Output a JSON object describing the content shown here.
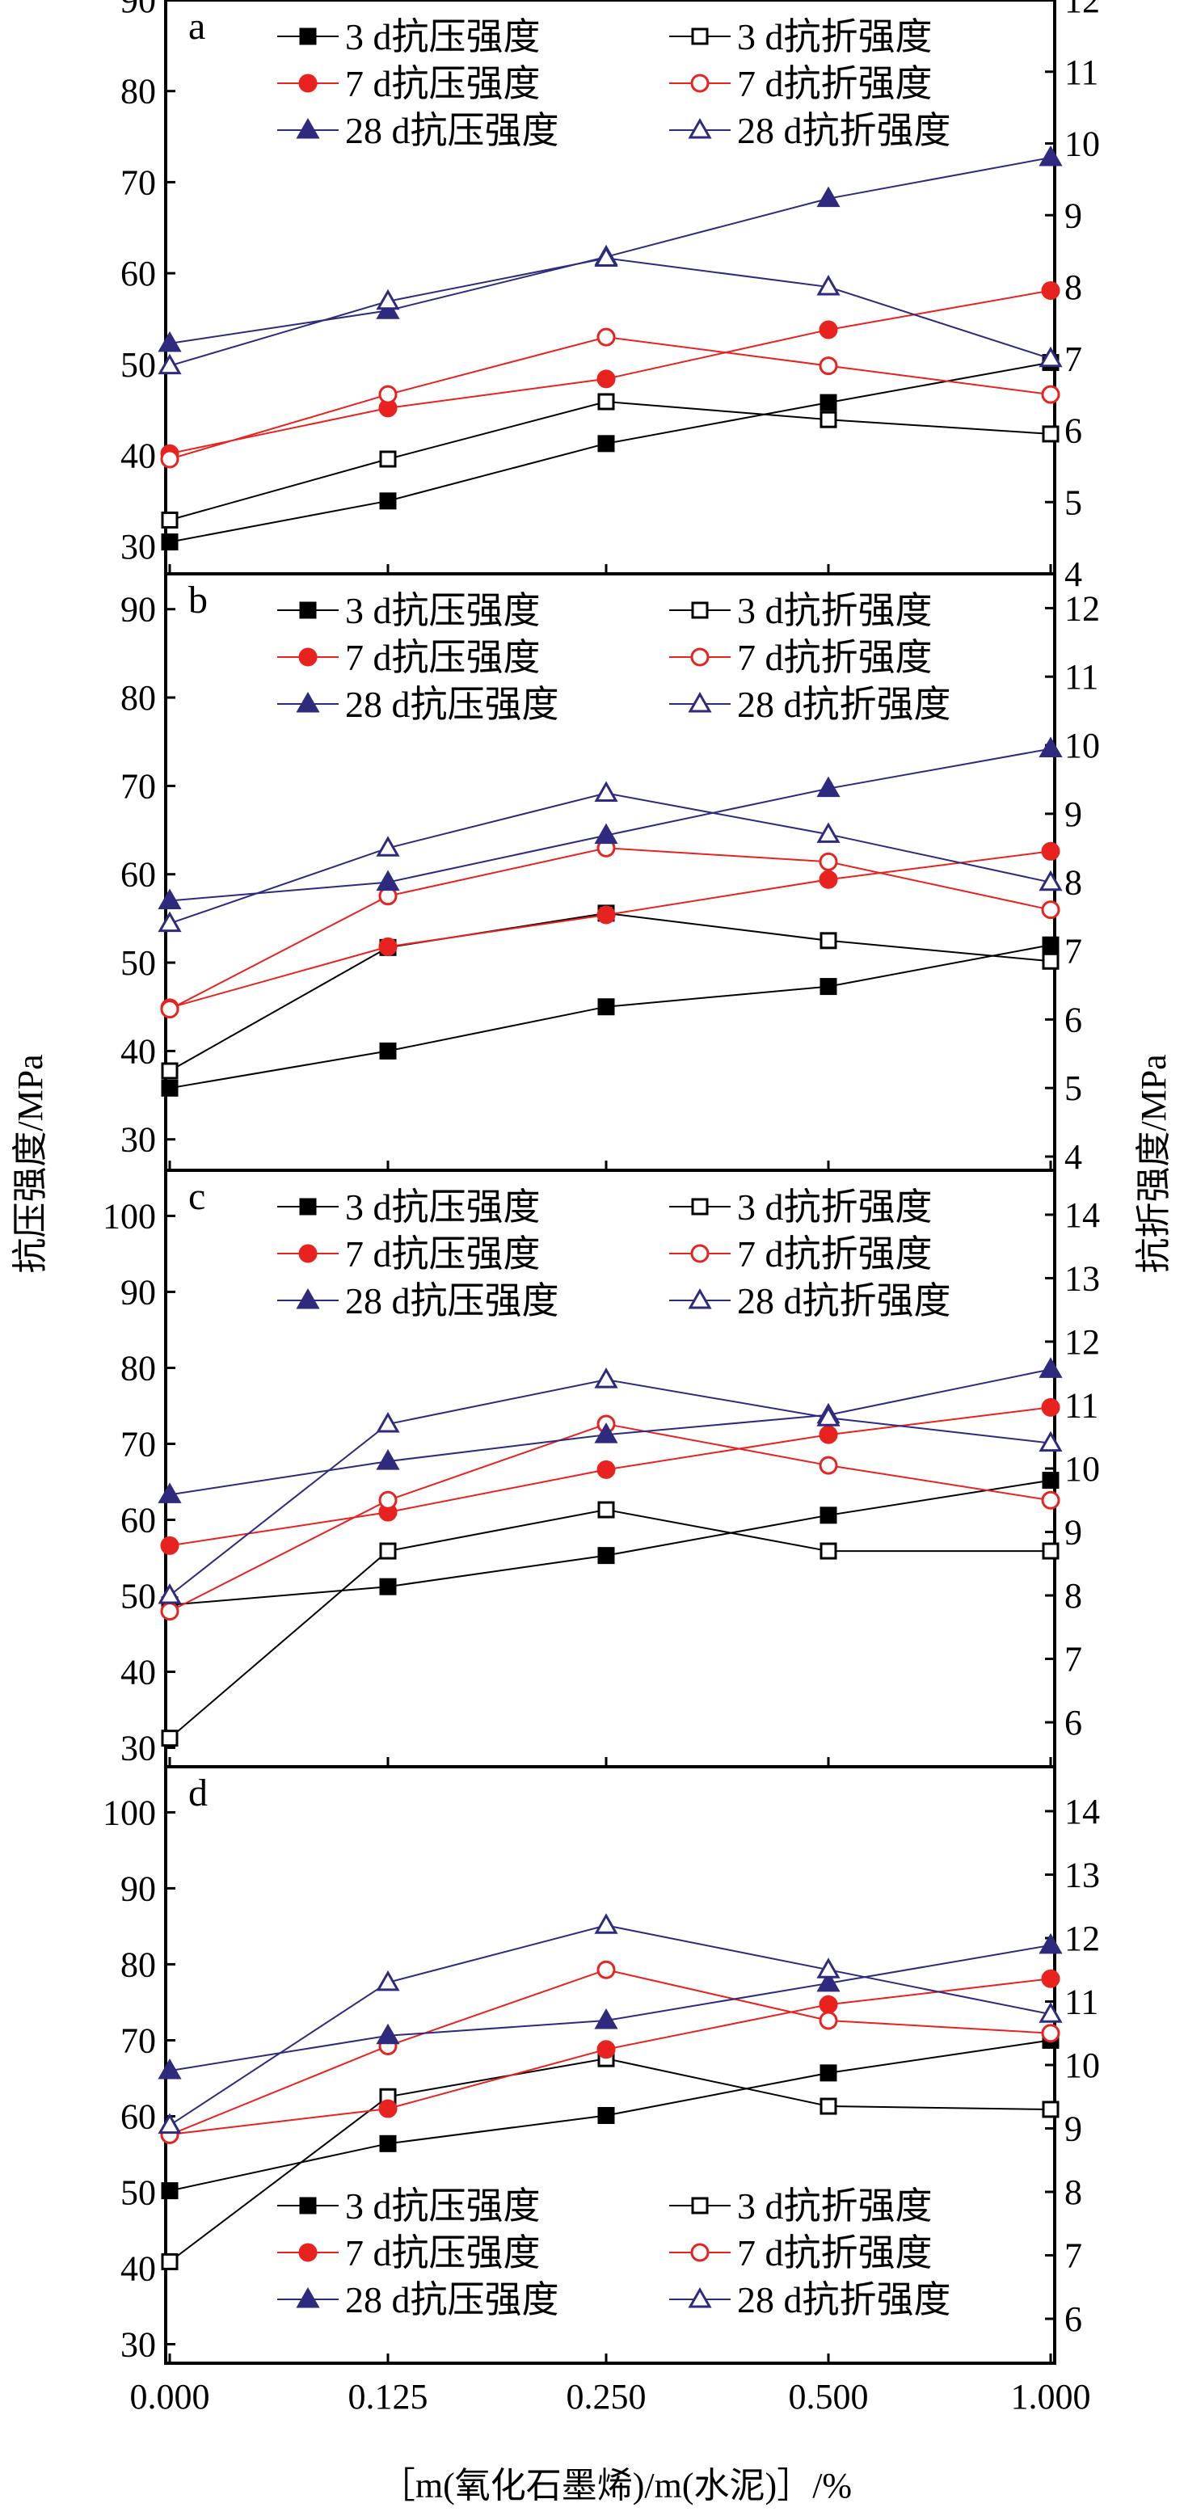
{
  "figure": {
    "ylabel_left": "抗压强度/MPa",
    "ylabel_right": "抗折强度/MPa",
    "xlabel": "［m(氧化石墨烯)/m(水泥)］/%",
    "x_tick_labels": [
      "0.000",
      "0.125",
      "0.250",
      "0.500",
      "1.000"
    ]
  },
  "series_styles": [
    {
      "key": "c3",
      "color": "#000000",
      "marker": "square",
      "filled": true
    },
    {
      "key": "f3",
      "color": "#000000",
      "marker": "square",
      "filled": false
    },
    {
      "key": "c7",
      "color": "#e8231f",
      "marker": "circle",
      "filled": true
    },
    {
      "key": "f7",
      "color": "#e8231f",
      "marker": "circle",
      "filled": false
    },
    {
      "key": "c28",
      "color": "#2e2a7e",
      "marker": "triangle",
      "filled": true
    },
    {
      "key": "f28",
      "color": "#2e2a7e",
      "marker": "triangle",
      "filled": false
    }
  ],
  "chart_data": [
    {
      "type": "line",
      "panel": "a",
      "categories": [
        "0.000",
        "0.125",
        "0.250",
        "0.500",
        "1.000"
      ],
      "ylim_left": [
        27,
        90
      ],
      "yticks_left": [
        30,
        40,
        50,
        60,
        70,
        80,
        90
      ],
      "ylim_right": [
        4,
        12
      ],
      "yticks_right": [
        4,
        5,
        6,
        7,
        8,
        9,
        10,
        11,
        12
      ],
      "legend_position": "top",
      "series": [
        {
          "name": "3 d抗压强度",
          "axis": "left",
          "values": [
            30.5,
            35,
            41.3,
            45.8,
            50.2
          ]
        },
        {
          "name": "3 d抗折强度",
          "axis": "right",
          "values": [
            4.75,
            5.6,
            6.4,
            6.15,
            5.95
          ]
        },
        {
          "name": "7 d抗压强度",
          "axis": "left",
          "values": [
            40.2,
            45.2,
            48.4,
            53.8,
            58.1
          ]
        },
        {
          "name": "7 d抗折强度",
          "axis": "right",
          "values": [
            5.6,
            6.5,
            7.3,
            6.9,
            6.5
          ]
        },
        {
          "name": "28 d抗压强度",
          "axis": "left",
          "values": [
            52.3,
            55.9,
            61.8,
            68.2,
            72.7
          ]
        },
        {
          "name": "28 d抗折强度",
          "axis": "right",
          "values": [
            6.9,
            7.8,
            8.4,
            8.0,
            7.0
          ]
        }
      ]
    },
    {
      "type": "line",
      "panel": "b",
      "categories": [
        "0.000",
        "0.125",
        "0.250",
        "0.500",
        "1.000"
      ],
      "ylim_left": [
        26.5,
        94
      ],
      "yticks_left": [
        30,
        40,
        50,
        60,
        70,
        80,
        90
      ],
      "ylim_right": [
        3.8,
        12.5
      ],
      "yticks_right": [
        4,
        5,
        6,
        7,
        8,
        9,
        10,
        11,
        12
      ],
      "legend_position": "top",
      "series": [
        {
          "name": "3 d抗压强度",
          "axis": "left",
          "values": [
            35.8,
            40,
            45,
            47.3,
            52
          ]
        },
        {
          "name": "3 d抗折强度",
          "axis": "right",
          "values": [
            5.25,
            7.05,
            7.55,
            7.15,
            6.85
          ]
        },
        {
          "name": "7 d抗压强度",
          "axis": "left",
          "values": [
            44.9,
            51.8,
            55.4,
            59.4,
            62.6
          ]
        },
        {
          "name": "7 d抗折强度",
          "axis": "right",
          "values": [
            6.15,
            7.8,
            8.5,
            8.3,
            7.6
          ]
        },
        {
          "name": "28 d抗压强度",
          "axis": "left",
          "values": [
            57,
            59.1,
            64.4,
            69.7,
            74.2
          ]
        },
        {
          "name": "28 d抗折强度",
          "axis": "right",
          "values": [
            7.4,
            8.5,
            9.3,
            8.7,
            8.0
          ]
        }
      ]
    },
    {
      "type": "line",
      "panel": "c",
      "categories": [
        "0.000",
        "0.125",
        "0.250",
        "0.500",
        "1.000"
      ],
      "ylim_left": [
        27.5,
        106
      ],
      "yticks_left": [
        30,
        40,
        50,
        60,
        70,
        80,
        90,
        100
      ],
      "ylim_right": [
        5.3,
        14.7
      ],
      "yticks_right": [
        6,
        7,
        8,
        9,
        10,
        11,
        12,
        13,
        14
      ],
      "legend_position": "top",
      "series": [
        {
          "name": "3 d抗压强度",
          "axis": "left",
          "values": [
            48.8,
            51.2,
            55.3,
            60.6,
            65.2
          ]
        },
        {
          "name": "3 d抗折强度",
          "axis": "right",
          "values": [
            5.75,
            8.7,
            9.35,
            8.7,
            8.7
          ]
        },
        {
          "name": "7 d抗压强度",
          "axis": "left",
          "values": [
            56.6,
            61,
            66.6,
            71.2,
            74.8
          ]
        },
        {
          "name": "7 d抗折强度",
          "axis": "right",
          "values": [
            7.75,
            9.5,
            10.7,
            10.05,
            9.5
          ]
        },
        {
          "name": "28 d抗压强度",
          "axis": "left",
          "values": [
            63.3,
            67.7,
            71.2,
            73.8,
            79.8
          ]
        },
        {
          "name": "28 d抗折强度",
          "axis": "right",
          "values": [
            8.0,
            10.7,
            11.4,
            10.8,
            10.4
          ]
        }
      ]
    },
    {
      "type": "line",
      "panel": "d",
      "categories": [
        "0.000",
        "0.125",
        "0.250",
        "0.500",
        "1.000"
      ],
      "ylim_left": [
        27.5,
        106
      ],
      "yticks_left": [
        30,
        40,
        50,
        60,
        70,
        80,
        90,
        100
      ],
      "ylim_right": [
        5.3,
        14.7
      ],
      "yticks_right": [
        6,
        7,
        8,
        9,
        10,
        11,
        12,
        13,
        14
      ],
      "legend_position": "bottom",
      "series": [
        {
          "name": "3 d抗压强度",
          "axis": "left",
          "values": [
            50.2,
            56.4,
            60.1,
            65.7,
            70
          ]
        },
        {
          "name": "3 d抗折强度",
          "axis": "right",
          "values": [
            6.9,
            9.5,
            10.1,
            9.35,
            9.3
          ]
        },
        {
          "name": "7 d抗压强度",
          "axis": "left",
          "values": [
            57.6,
            61,
            68.8,
            74.7,
            78.1
          ]
        },
        {
          "name": "7 d抗折强度",
          "axis": "right",
          "values": [
            8.9,
            10.3,
            11.5,
            10.7,
            10.5
          ]
        },
        {
          "name": "28 d抗压强度",
          "axis": "left",
          "values": [
            66,
            70.6,
            72.6,
            77.5,
            82.5
          ]
        },
        {
          "name": "28 d抗折强度",
          "axis": "right",
          "values": [
            9.05,
            11.3,
            12.2,
            11.5,
            10.8
          ]
        }
      ]
    }
  ]
}
